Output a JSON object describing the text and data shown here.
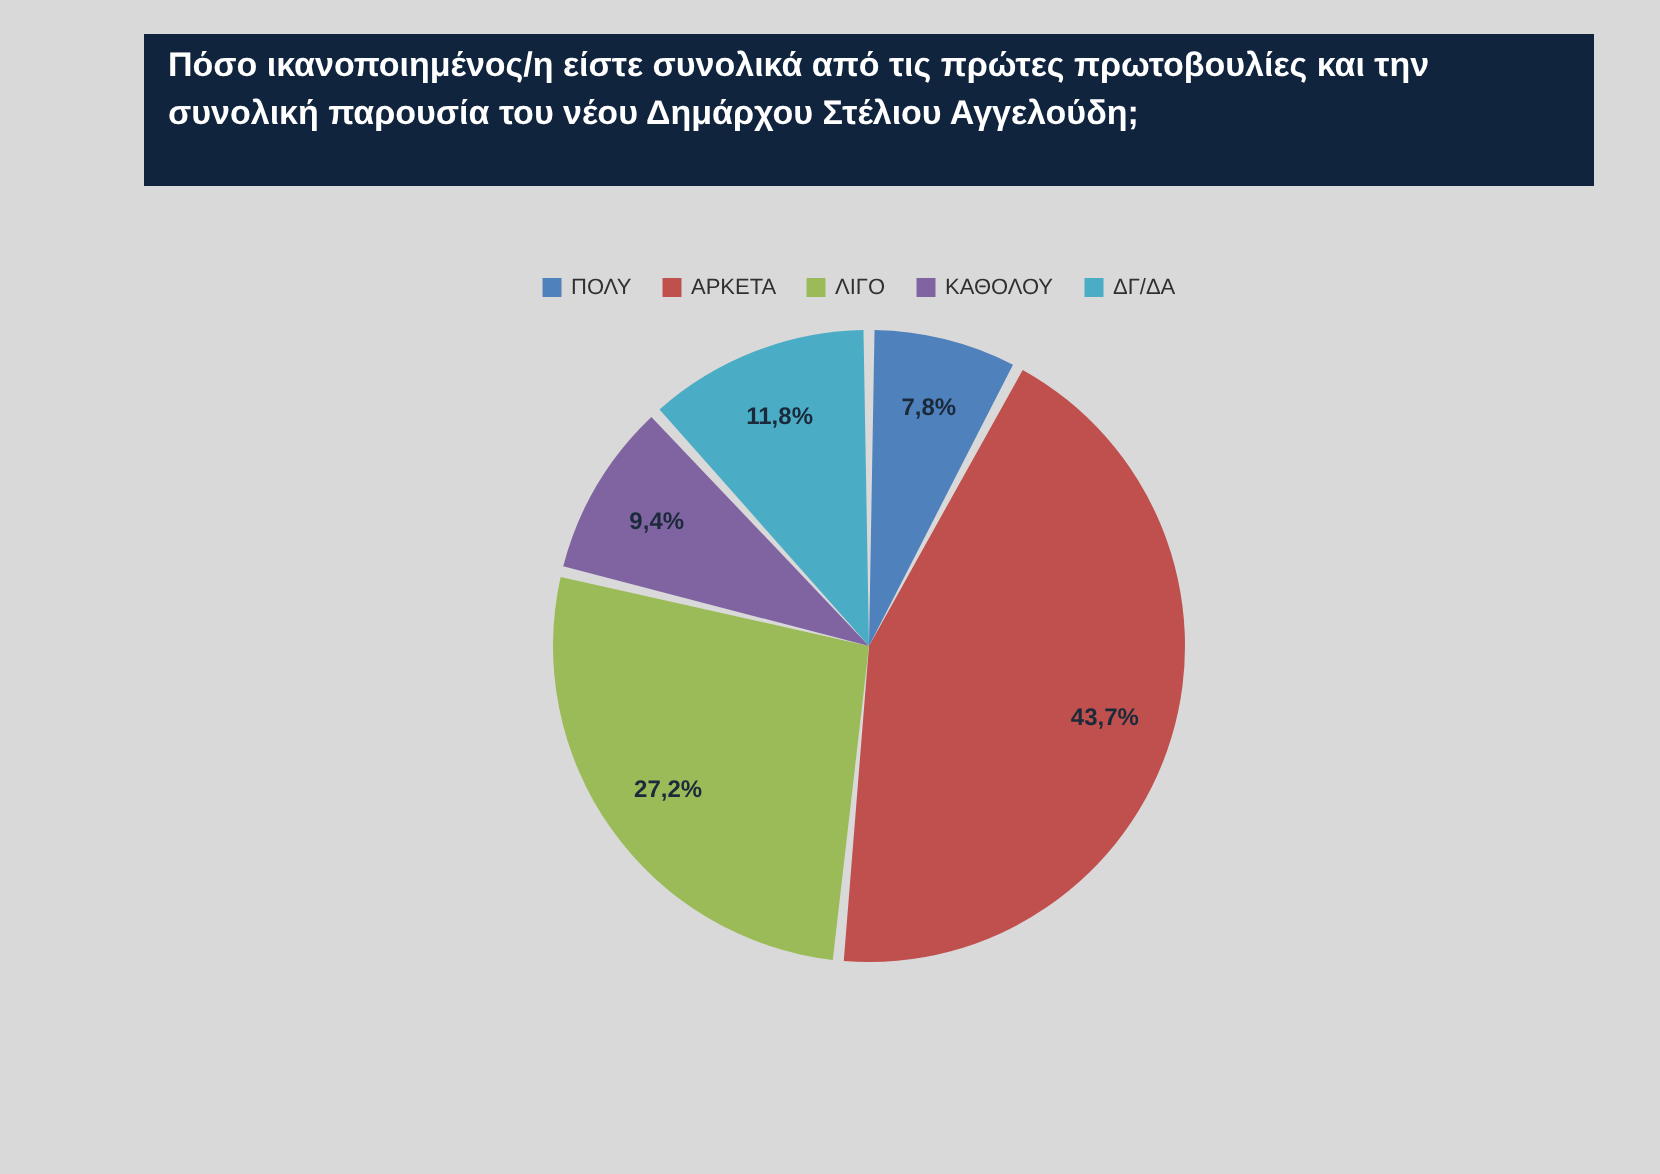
{
  "chart_data": {
    "type": "pie",
    "title": "Πόσο ικανοποιημένος/η είστε συνολικά από τις πρώτες πρωτοβουλίες και την συνολική παρουσία του νέου Δημάρχου Στέλιου Αγγελούδη;",
    "categories": [
      "ΠΟΛΥ",
      "ΑΡΚΕΤΑ",
      "ΛΙΓΟ",
      "ΚΑΘΟΛΟΥ",
      "ΔΓ/ΔΑ"
    ],
    "values": [
      7.8,
      43.7,
      27.2,
      9.4,
      11.8
    ],
    "colors": [
      "#4f81bd",
      "#c0504d",
      "#9bbb59",
      "#8064a2",
      "#4bacc6"
    ],
    "value_labels": [
      "7,8%",
      "43,7%",
      "27,2%",
      "9,4%",
      "11,8%"
    ],
    "legend": "top"
  }
}
